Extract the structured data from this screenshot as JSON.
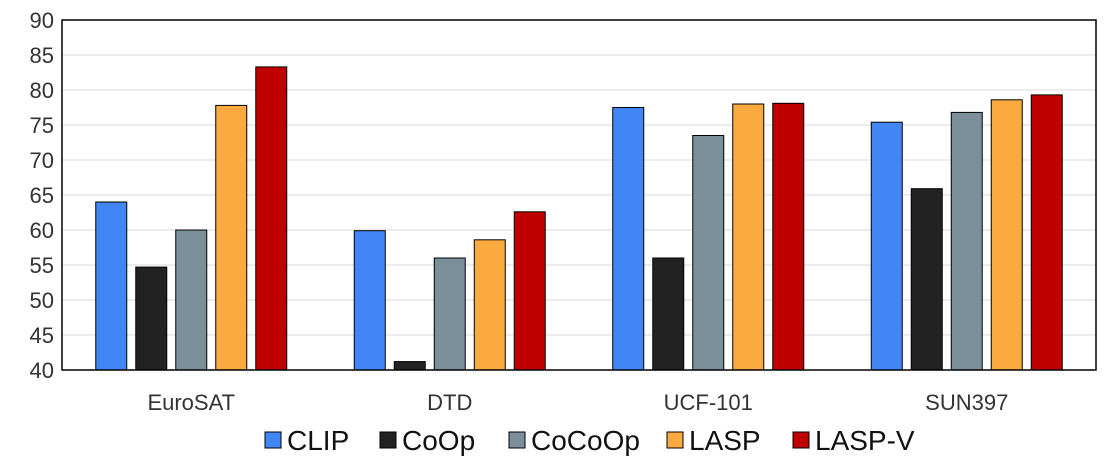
{
  "chart_data": {
    "type": "bar",
    "title": "",
    "xlabel": "",
    "ylabel": "",
    "ylim": [
      40,
      90
    ],
    "yticks": [
      40,
      45,
      50,
      55,
      60,
      65,
      70,
      75,
      80,
      85,
      90
    ],
    "grid": "horizontal",
    "legend_position": "bottom",
    "categories": [
      "EuroSAT",
      "DTD",
      "UCF-101",
      "SUN397"
    ],
    "series": [
      {
        "name": "CLIP",
        "color": "#4285f4",
        "values": [
          64.0,
          59.9,
          77.5,
          75.4
        ]
      },
      {
        "name": "CoOp",
        "color": "#222222",
        "values": [
          54.7,
          41.2,
          56.0,
          65.9
        ]
      },
      {
        "name": "CoCoOp",
        "color": "#7b8f9b",
        "values": [
          60.0,
          56.0,
          73.5,
          76.8
        ]
      },
      {
        "name": "LASP",
        "color": "#fbaa3f",
        "values": [
          77.8,
          58.6,
          78.0,
          78.6
        ]
      },
      {
        "name": "LASP-V",
        "color": "#c00000",
        "values": [
          83.3,
          62.6,
          78.1,
          79.3
        ]
      }
    ]
  }
}
